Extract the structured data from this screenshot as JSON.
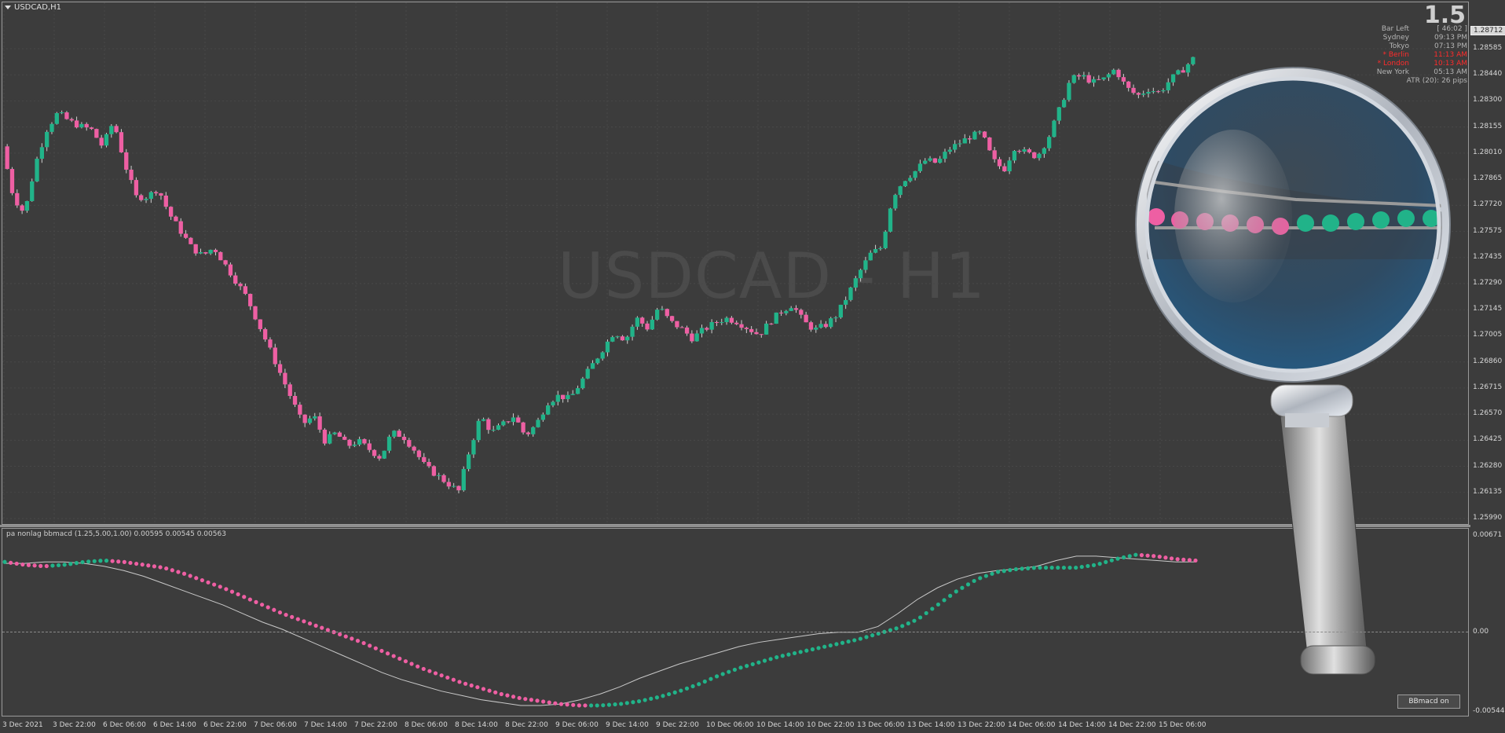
{
  "window": {
    "title": "USDCAD,H1",
    "watermark": "USDCAD - H1"
  },
  "spread": "1.5",
  "info_panel": {
    "rows": [
      {
        "label": "Bar Left",
        "value": "[ 46:02 ]",
        "highlight": false
      },
      {
        "label": "Sydney",
        "value": "09:13 PM",
        "highlight": false
      },
      {
        "label": "Tokyo",
        "value": "07:13 PM",
        "highlight": false
      },
      {
        "label": "* Berlin",
        "value": "11:13 AM",
        "highlight": true
      },
      {
        "label": "* London",
        "value": "10:13 AM",
        "highlight": true
      },
      {
        "label": "New York",
        "value": "05:13 AM",
        "highlight": false
      }
    ],
    "atr": "ATR (20): 26 pips"
  },
  "price_axis": {
    "current": "1.28712",
    "labels": [
      "1.28585",
      "1.28440",
      "1.28300",
      "1.28155",
      "1.28010",
      "1.27865",
      "1.27720",
      "1.27575",
      "1.27435",
      "1.27290",
      "1.27145",
      "1.27005",
      "1.26860",
      "1.26715",
      "1.26570",
      "1.26425",
      "1.26280",
      "1.26135",
      "1.25990"
    ]
  },
  "indicator": {
    "label": "pa nonlag bbmacd (1.25,5.00,1.00) 0.00595 0.00545 0.00563",
    "axis": [
      "0.00671",
      "0.00",
      "-0.00544"
    ],
    "button_label": "BBmacd on"
  },
  "time_axis": [
    "3 Dec 2021",
    "3 Dec 22:00",
    "6 Dec 06:00",
    "6 Dec 14:00",
    "6 Dec 22:00",
    "7 Dec 06:00",
    "7 Dec 14:00",
    "7 Dec 22:00",
    "8 Dec 06:00",
    "8 Dec 14:00",
    "8 Dec 22:00",
    "9 Dec 06:00",
    "9 Dec 14:00",
    "9 Dec 22:00",
    "10 Dec 06:00",
    "10 Dec 14:00",
    "10 Dec 22:00",
    "13 Dec 06:00",
    "13 Dec 14:00",
    "13 Dec 22:00",
    "14 Dec 06:00",
    "14 Dec 14:00",
    "14 Dec 22:00",
    "15 Dec 06:00"
  ],
  "colors": {
    "bull": "#21b389",
    "bear": "#ee5fa3",
    "background": "#3c3c3c"
  },
  "chart_data": [
    {
      "type": "candlestick",
      "symbol": "USDCAD",
      "timeframe": "H1",
      "ylim": [
        1.2599,
        1.2878
      ],
      "close_path": [
        1.282,
        1.279,
        1.278,
        1.281,
        1.283,
        1.284,
        1.2835,
        1.2832,
        1.283,
        1.282,
        1.2835,
        1.281,
        1.279,
        1.279,
        1.2795,
        1.278,
        1.277,
        1.276,
        1.2755,
        1.276,
        1.275,
        1.274,
        1.273,
        1.2715,
        1.27,
        1.2685,
        1.267,
        1.2655,
        1.266,
        1.2645,
        1.265,
        1.2642,
        1.2645,
        1.264,
        1.2635,
        1.265,
        1.2648,
        1.264,
        1.263,
        1.2625,
        1.262,
        1.2615,
        1.264,
        1.266,
        1.265,
        1.2655,
        1.266,
        1.2648,
        1.2655,
        1.2668,
        1.2672,
        1.267,
        1.268,
        1.269,
        1.27,
        1.271,
        1.2705,
        1.2718,
        1.2712,
        1.2725,
        1.2716,
        1.2712,
        1.2706,
        1.2711,
        1.2715,
        1.2718,
        1.2716,
        1.2712,
        1.2708,
        1.2716,
        1.2722,
        1.2726,
        1.2716,
        1.2711,
        1.2714,
        1.272,
        1.2732,
        1.2745,
        1.2756,
        1.276,
        1.279,
        1.28,
        1.2805,
        1.2812,
        1.281,
        1.2818,
        1.2822,
        1.2826,
        1.2828,
        1.2812,
        1.2806,
        1.282,
        1.2816,
        1.2814,
        1.2825,
        1.2842,
        1.286,
        1.2862,
        1.2858,
        1.286,
        1.2866,
        1.2855,
        1.285,
        1.2854,
        1.2852,
        1.286,
        1.2865,
        1.2872
      ]
    },
    {
      "type": "line",
      "title": "pa nonlag bbmacd",
      "ylim": [
        -0.00544,
        0.00671
      ],
      "series": [
        {
          "values": [
            0.005,
            0.0048,
            0.0047,
            0.0048,
            0.005,
            0.0051,
            0.005,
            0.0048,
            0.0046,
            0.0042,
            0.0037,
            0.0032,
            0.0026,
            0.002,
            0.0014,
            0.0009,
            0.0004,
            -0.0001,
            -0.0006,
            -0.0012,
            -0.0018,
            -0.0024,
            -0.0029,
            -0.0034,
            -0.0038,
            -0.0042,
            -0.0045,
            -0.0047,
            -0.0049,
            -0.005,
            -0.005,
            -0.0049,
            -0.0047,
            -0.0044,
            -0.004,
            -0.0035,
            -0.0029,
            -0.0024,
            -0.002,
            -0.0016,
            -0.0013,
            -0.001,
            -0.0007,
            -0.0004,
            0.0,
            0.0004,
            0.001,
            0.002,
            0.003,
            0.0038,
            0.0043,
            0.0045,
            0.0046,
            0.0046,
            0.0046,
            0.0048,
            0.0052,
            0.0055,
            0.0054,
            0.0052,
            0.0051
          ]
        },
        {
          "values": [
            0.0049,
            0.0049,
            0.005,
            0.005,
            0.0049,
            0.0047,
            0.0044,
            0.004,
            0.0035,
            0.003,
            0.0025,
            0.002,
            0.0014,
            0.0008,
            0.0003,
            -0.0003,
            -0.0009,
            -0.0015,
            -0.0021,
            -0.0027,
            -0.0032,
            -0.0036,
            -0.004,
            -0.0043,
            -0.0046,
            -0.0048,
            -0.005,
            -0.005,
            -0.0049,
            -0.0046,
            -0.0042,
            -0.0037,
            -0.0031,
            -0.0026,
            -0.0021,
            -0.0017,
            -0.0013,
            -0.0009,
            -0.0006,
            -0.0004,
            -0.0002,
            0.0,
            0.0001,
            0.0001,
            0.0005,
            0.0014,
            0.0024,
            0.0032,
            0.0038,
            0.0042,
            0.0044,
            0.0045,
            0.0047,
            0.0051,
            0.0054,
            0.0054,
            0.0053,
            0.0052,
            0.0051,
            0.005,
            0.005
          ]
        }
      ]
    }
  ]
}
